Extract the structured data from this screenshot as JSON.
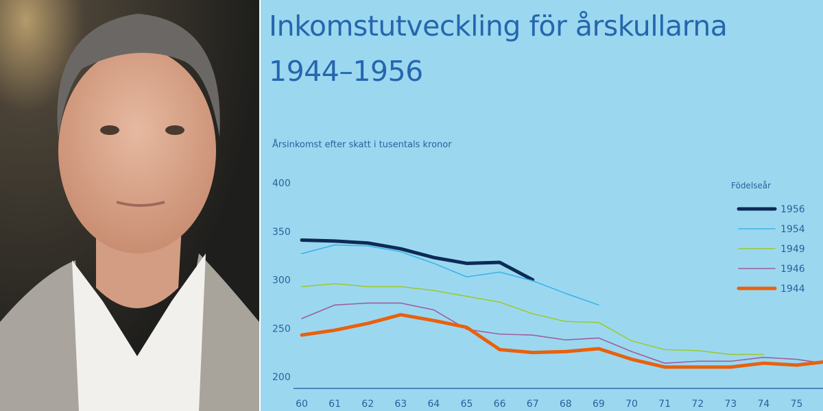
{
  "photo": {
    "subject": "portrait"
  },
  "chart_data": {
    "type": "line",
    "title_line1": "Inkomstutveckling för årskullarna",
    "title_line2": "1944–1956",
    "ylabel": "Årsinkomst efter skatt i tusentals kronor",
    "xlabel": "",
    "ylim": [
      188,
      400
    ],
    "yticks": [
      200,
      250,
      300,
      350,
      400
    ],
    "xticks": [
      60,
      61,
      62,
      63,
      64,
      65,
      66,
      67,
      68,
      69,
      70,
      71,
      72,
      73,
      74,
      75
    ],
    "grid": false,
    "legend_title": "Födelseår",
    "legend_position": "top-right",
    "series": [
      {
        "name": "1956",
        "color": "#0d2a55",
        "width": "thick",
        "x": [
          60,
          61,
          62,
          63,
          64,
          65,
          66,
          67
        ],
        "values": [
          341,
          340,
          338,
          332,
          323,
          317,
          318,
          300
        ]
      },
      {
        "name": "1954",
        "color": "#3cb4e6",
        "width": "thin",
        "x": [
          60,
          61,
          62,
          63,
          64,
          65,
          66,
          67,
          68,
          69
        ],
        "values": [
          327,
          336,
          335,
          329,
          317,
          303,
          308,
          299,
          286,
          274
        ]
      },
      {
        "name": "1949",
        "color": "#9cc92e",
        "width": "thin",
        "x": [
          60,
          61,
          62,
          63,
          64,
          65,
          66,
          67,
          68,
          69,
          70,
          71,
          72,
          73,
          74
        ],
        "values": [
          293,
          296,
          293,
          293,
          289,
          283,
          277,
          265,
          257,
          256,
          237,
          228,
          227,
          223,
          223
        ]
      },
      {
        "name": "1946",
        "color": "#a05ca0",
        "width": "thin",
        "x": [
          60,
          61,
          62,
          63,
          64,
          65,
          66,
          67,
          68,
          69,
          70,
          71,
          72,
          73,
          74,
          75,
          76
        ],
        "values": [
          260,
          274,
          276,
          276,
          269,
          249,
          244,
          243,
          238,
          240,
          226,
          214,
          216,
          216,
          220,
          218,
          213
        ]
      },
      {
        "name": "1944",
        "color": "#e8610e",
        "width": "thick",
        "x": [
          60,
          61,
          62,
          63,
          64,
          65,
          66,
          67,
          68,
          69,
          70,
          71,
          72,
          73,
          74,
          75,
          76
        ],
        "values": [
          243,
          248,
          255,
          264,
          258,
          251,
          228,
          225,
          226,
          229,
          218,
          210,
          210,
          210,
          214,
          212,
          216
        ]
      }
    ]
  }
}
